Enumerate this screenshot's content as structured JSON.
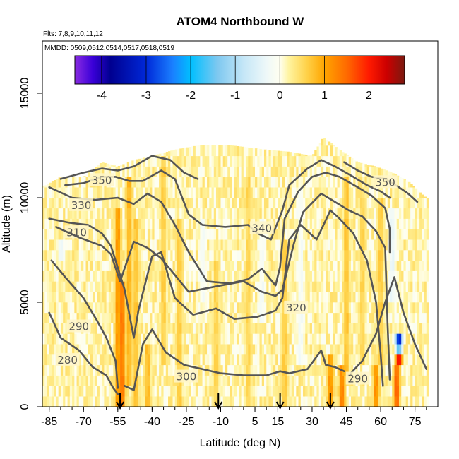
{
  "chart_data": {
    "type": "heatmap",
    "title": "ATOM4 Northbound W",
    "subtitle_flights": "Flts: 7,8,9,10,11,12",
    "subtitle_dates": "MMDD: 0509,0512,0514,0517,0518,0519",
    "xlabel": "Latitude (deg N)",
    "ylabel": "Altitude (m)",
    "xlim": [
      -88,
      85
    ],
    "ylim": [
      0,
      17500
    ],
    "x_ticks": [
      -85,
      -70,
      -55,
      -40,
      -25,
      -10,
      5,
      15,
      30,
      45,
      60,
      75
    ],
    "x_tick_labels": [
      "-85",
      "-70",
      "-55",
      "-40",
      "-25",
      "-10",
      "5",
      "15",
      "30",
      "45",
      "60",
      "75"
    ],
    "y_ticks": [
      0,
      5000,
      10000,
      15000
    ],
    "y_tick_labels": [
      "0",
      "5000",
      "10000",
      "15000"
    ],
    "colorbar": {
      "range": [
        -4.6,
        2.8
      ],
      "ticks": [
        -4,
        -3,
        -2,
        -1,
        0,
        1,
        2
      ],
      "tick_labels": [
        "-4",
        "-3",
        "-2",
        "-1",
        "0",
        "1",
        "2"
      ],
      "stops": [
        {
          "v": -4.6,
          "c": "#8a2be2"
        },
        {
          "v": -4.2,
          "c": "#3a00d8"
        },
        {
          "v": -3.8,
          "c": "#000090"
        },
        {
          "v": -3.0,
          "c": "#0028d8"
        },
        {
          "v": -2.4,
          "c": "#1a80ff"
        },
        {
          "v": -2.0,
          "c": "#00bfff"
        },
        {
          "v": -1.4,
          "c": "#7ec8f0"
        },
        {
          "v": -0.8,
          "c": "#c6e7f7"
        },
        {
          "v": -0.3,
          "c": "#eef8f8"
        },
        {
          "v": 0.0,
          "c": "#fffff0"
        },
        {
          "v": 0.2,
          "c": "#fff4a0"
        },
        {
          "v": 0.6,
          "c": "#ffd24a"
        },
        {
          "v": 1.0,
          "c": "#ffa500"
        },
        {
          "v": 1.5,
          "c": "#ff6a00"
        },
        {
          "v": 2.0,
          "c": "#ff1a00"
        },
        {
          "v": 2.4,
          "c": "#cc0000"
        },
        {
          "v": 2.8,
          "c": "#7a1a10"
        }
      ]
    },
    "column_tops_m": [
      {
        "lat": -88,
        "top": 10500
      },
      {
        "lat": -80,
        "top": 11000
      },
      {
        "lat": -70,
        "top": 11000
      },
      {
        "lat": -62,
        "top": 11700
      },
      {
        "lat": -55,
        "top": 11500
      },
      {
        "lat": -48,
        "top": 11800
      },
      {
        "lat": -40,
        "top": 12000
      },
      {
        "lat": -30,
        "top": 12300
      },
      {
        "lat": -20,
        "top": 12500
      },
      {
        "lat": -5,
        "top": 12500
      },
      {
        "lat": 10,
        "top": 12300
      },
      {
        "lat": 20,
        "top": 12200
      },
      {
        "lat": 30,
        "top": 12000
      },
      {
        "lat": 35,
        "top": 12900
      },
      {
        "lat": 42,
        "top": 12300
      },
      {
        "lat": 50,
        "top": 11700
      },
      {
        "lat": 58,
        "top": 11500
      },
      {
        "lat": 65,
        "top": 11200
      },
      {
        "lat": 72,
        "top": 10800
      },
      {
        "lat": 80,
        "top": 10000
      }
    ],
    "w_anomalies": [
      {
        "lat": -55,
        "alt0": 0,
        "alt1": 9500,
        "w": 1.3
      },
      {
        "lat": -53,
        "alt0": 0,
        "alt1": 6000,
        "w": 1.6
      },
      {
        "lat": -50,
        "alt0": 1000,
        "alt1": 11000,
        "w": 1.0
      },
      {
        "lat": -47,
        "alt0": 0,
        "alt1": 9000,
        "w": 0.8
      },
      {
        "lat": -42,
        "alt0": 0,
        "alt1": 3000,
        "w": 0.9
      },
      {
        "lat": -35,
        "alt0": 2000,
        "alt1": 12000,
        "w": 0.7
      },
      {
        "lat": -28,
        "alt0": 0,
        "alt1": 9000,
        "w": 0.7
      },
      {
        "lat": -12,
        "alt0": 0,
        "alt1": 7000,
        "w": 0.6
      },
      {
        "lat": 2,
        "alt0": 0,
        "alt1": 11000,
        "w": 0.6
      },
      {
        "lat": 8,
        "alt0": 4000,
        "alt1": 9000,
        "w": -0.3
      },
      {
        "lat": 18,
        "alt0": 0,
        "alt1": 8000,
        "w": 0.7
      },
      {
        "lat": 25,
        "alt0": 2000,
        "alt1": 10500,
        "w": -0.3
      },
      {
        "lat": 38,
        "alt0": 0,
        "alt1": 2500,
        "w": 1.3
      },
      {
        "lat": 43,
        "alt0": 0,
        "alt1": 2000,
        "w": 1.5
      },
      {
        "lat": 45,
        "alt0": 1500,
        "alt1": 11000,
        "w": 0.8
      },
      {
        "lat": 52,
        "alt0": 2000,
        "alt1": 10000,
        "w": 0.6
      },
      {
        "lat": 58,
        "alt0": 0,
        "alt1": 2000,
        "w": 1.4
      },
      {
        "lat": 60,
        "alt0": 2000,
        "alt1": 10000,
        "w": 0.7
      },
      {
        "lat": 65,
        "alt0": 5000,
        "alt1": 9500,
        "w": -0.5
      },
      {
        "lat": 67,
        "alt0": 0,
        "alt1": 1800,
        "w": 1.8
      },
      {
        "lat": 68,
        "alt0": 1800,
        "alt1": 2300,
        "w": 2.6
      },
      {
        "lat": 68,
        "alt0": 2300,
        "alt1": 3000,
        "w": -2.0
      },
      {
        "lat": 68,
        "alt0": 3000,
        "alt1": 3600,
        "w": -4.0
      },
      {
        "lat": -80,
        "alt0": 7000,
        "alt1": 8000,
        "w": -0.4
      },
      {
        "lat": -18,
        "alt0": 5000,
        "alt1": 9000,
        "w": -0.3
      }
    ],
    "contours": [
      {
        "label": "280",
        "points": [
          [
            -85,
            4500
          ],
          [
            -80,
            3300
          ],
          [
            -72,
            2700
          ],
          [
            -66,
            1900
          ],
          [
            -60,
            1500
          ],
          [
            -57,
            900
          ],
          [
            -55,
            600
          ]
        ],
        "label_at": [
          -77,
          2200
        ]
      },
      {
        "label": "290",
        "points": [
          [
            -84,
            7000
          ],
          [
            -78,
            6200
          ],
          [
            -70,
            5200
          ],
          [
            -64,
            4100
          ],
          [
            -60,
            3300
          ],
          [
            -56,
            2200
          ],
          [
            -55,
            900
          ]
        ],
        "label_at": [
          -72,
          3800
        ]
      },
      {
        "label": "300",
        "points": [
          [
            -52,
            1000
          ],
          [
            -48,
            800
          ],
          [
            -44,
            3000
          ],
          [
            -40,
            3700
          ],
          [
            -34,
            2600
          ],
          [
            -26,
            2000
          ],
          [
            -10,
            1600
          ],
          [
            0,
            1500
          ],
          [
            10,
            1500
          ],
          [
            16,
            1700
          ],
          [
            20,
            1600
          ],
          [
            28,
            1800
          ],
          [
            34,
            2700
          ],
          [
            36,
            2000
          ],
          [
            40,
            1900
          ],
          [
            44,
            1700
          ]
        ],
        "label_at": [
          -25,
          1400
        ]
      },
      {
        "label": "290",
        "points": [
          [
            46,
            1500
          ],
          [
            52,
            2200
          ],
          [
            58,
            3500
          ],
          [
            62,
            5000
          ],
          [
            66,
            6200
          ],
          [
            70,
            4500
          ],
          [
            75,
            3000
          ],
          [
            80,
            1800
          ]
        ],
        "label_at": [
          50,
          1300
        ]
      },
      {
        "label": "310",
        "points": [
          [
            -85,
            9000
          ],
          [
            -76,
            8800
          ],
          [
            -68,
            8700
          ],
          [
            -62,
            8300
          ],
          [
            -58,
            7700
          ],
          [
            -52,
            5600
          ],
          [
            -48,
            3300
          ],
          [
            -46,
            4600
          ],
          [
            -40,
            7200
          ],
          [
            -36,
            7400
          ],
          [
            -30,
            5200
          ],
          [
            -22,
            4400
          ],
          [
            -12,
            4700
          ],
          [
            -4,
            4200
          ],
          [
            6,
            4300
          ],
          [
            14,
            4600
          ],
          [
            17,
            5200
          ],
          [
            20,
            8000
          ],
          [
            25,
            8700
          ],
          [
            32,
            8000
          ],
          [
            38,
            9400
          ],
          [
            42,
            9000
          ],
          [
            48,
            8300
          ],
          [
            54,
            7000
          ],
          [
            58,
            5000
          ],
          [
            60,
            2500
          ],
          [
            61,
            1000
          ]
        ],
        "label_at": [
          -73,
          8300
        ]
      },
      {
        "label": "320",
        "points": [
          [
            -82,
            8600
          ],
          [
            -72,
            8100
          ],
          [
            -62,
            7700
          ],
          [
            -58,
            7300
          ],
          [
            -54,
            6000
          ],
          [
            -48,
            7900
          ],
          [
            -42,
            7600
          ],
          [
            -36,
            7100
          ],
          [
            -30,
            6300
          ],
          [
            -24,
            5500
          ],
          [
            -10,
            5800
          ],
          [
            0,
            6000
          ],
          [
            8,
            5500
          ],
          [
            14,
            5300
          ],
          [
            17,
            5600
          ],
          [
            22,
            7800
          ],
          [
            26,
            9300
          ],
          [
            34,
            10200
          ],
          [
            40,
            9800
          ],
          [
            46,
            9400
          ],
          [
            52,
            9100
          ],
          [
            58,
            8400
          ],
          [
            62,
            7600
          ],
          [
            63,
            4000
          ],
          [
            64,
            1300
          ]
        ],
        "label_at": [
          23,
          4700
        ]
      },
      {
        "label": "330",
        "points": [
          [
            -85,
            10500
          ],
          [
            -75,
            10000
          ],
          [
            -65,
            9900
          ],
          [
            -55,
            10000
          ],
          [
            -48,
            9700
          ],
          [
            -42,
            10200
          ],
          [
            -36,
            9800
          ],
          [
            -30,
            8700
          ],
          [
            -24,
            7400
          ],
          [
            -16,
            6000
          ],
          [
            -6,
            5900
          ],
          [
            2,
            6100
          ],
          [
            8,
            6600
          ],
          [
            14,
            5800
          ],
          [
            16,
            6700
          ],
          [
            18,
            9000
          ],
          [
            24,
            10300
          ],
          [
            30,
            11000
          ],
          [
            36,
            11200
          ],
          [
            42,
            11000
          ],
          [
            50,
            10500
          ],
          [
            56,
            10100
          ],
          [
            62,
            9500
          ],
          [
            64,
            8500
          ],
          [
            64,
            7400
          ]
        ],
        "label_at": [
          -71,
          9600
        ]
      },
      {
        "label": "340",
        "points": [
          [
            -78,
            10600
          ],
          [
            -70,
            10700
          ],
          [
            -62,
            11000
          ],
          [
            -56,
            11000
          ],
          [
            -50,
            10800
          ],
          [
            -44,
            10800
          ],
          [
            -36,
            11300
          ],
          [
            -30,
            10900
          ],
          [
            -24,
            9200
          ],
          [
            -18,
            8700
          ],
          [
            -8,
            8600
          ],
          [
            2,
            8700
          ],
          [
            6,
            8300
          ],
          [
            12,
            8000
          ],
          [
            17,
            9400
          ],
          [
            20,
            10600
          ],
          [
            28,
            11400
          ],
          [
            34,
            11800
          ],
          [
            40,
            11500
          ],
          [
            48,
            11000
          ],
          [
            54,
            10600
          ],
          [
            60,
            10300
          ],
          [
            64,
            10000
          ]
        ],
        "label_at": [
          8,
          8500
        ]
      },
      {
        "label": "350",
        "points": [
          [
            -80,
            10900
          ],
          [
            -70,
            11200
          ],
          [
            -62,
            11400
          ],
          [
            -55,
            11300
          ],
          [
            -48,
            11500
          ],
          [
            -40,
            12000
          ],
          [
            -32,
            11800
          ],
          [
            -26,
            11200
          ],
          [
            -20,
            10900
          ]
        ],
        "label_at": [
          -62,
          10800
        ]
      },
      {
        "label": "350",
        "points": [
          [
            44,
            11700
          ],
          [
            50,
            11300
          ],
          [
            56,
            11000
          ],
          [
            62,
            10900
          ],
          [
            68,
            10500
          ],
          [
            72,
            10200
          ],
          [
            76,
            9800
          ]
        ],
        "label_at": [
          62,
          10700
        ]
      }
    ],
    "arrow_lats": [
      -54,
      -11,
      16,
      38
    ]
  }
}
